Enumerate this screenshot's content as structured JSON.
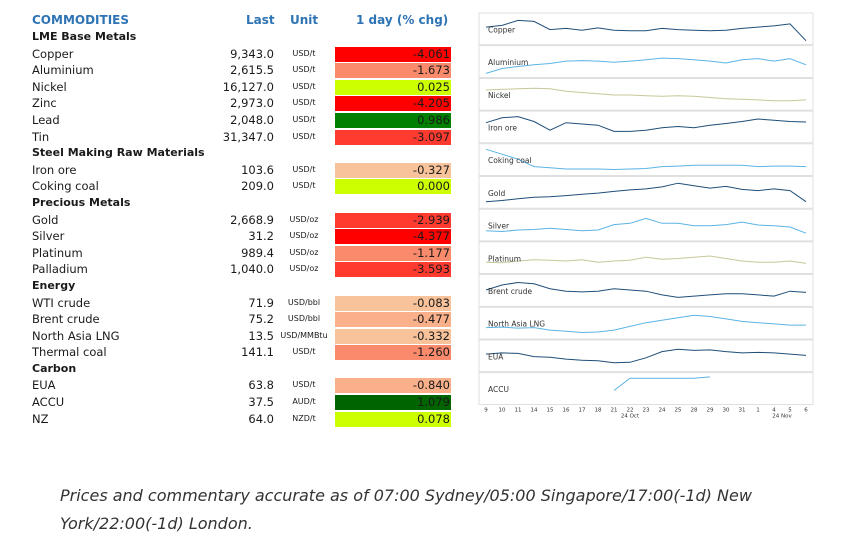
{
  "header": {
    "commodities": "COMMODITIES",
    "last": "Last",
    "unit": "Unit",
    "change": "1 day (% chg)"
  },
  "colors": {
    "header_blue": "#2e74b5",
    "strong_red": "#ff0000",
    "red": "#ff3b30",
    "salmon": "#f98a6c",
    "light_salmon": "#f9b08b",
    "peach": "#f8c39a",
    "lime": "#ccff00",
    "green": "#008000",
    "dark_green": "#006400",
    "spark_dark": "#1f4e79",
    "spark_light": "#5bb4e5",
    "spark_olive": "#c8c89a"
  },
  "rows": [
    {
      "type": "section",
      "name": "LME Base Metals"
    },
    {
      "type": "item",
      "name": "Copper",
      "last": "9,343.0",
      "unit": "USD/t",
      "change": "-4.061",
      "color": "#ff0000"
    },
    {
      "type": "item",
      "name": "Aluminium",
      "last": "2,615.5",
      "unit": "USD/t",
      "change": "-1.673",
      "color": "#f98a6c"
    },
    {
      "type": "item",
      "name": "Nickel",
      "last": "16,127.0",
      "unit": "USD/t",
      "change": "0.025",
      "color": "#ccff00"
    },
    {
      "type": "item",
      "name": "Zinc",
      "last": "2,973.0",
      "unit": "USD/t",
      "change": "-4.205",
      "color": "#ff0000"
    },
    {
      "type": "item",
      "name": "Lead",
      "last": "2,048.0",
      "unit": "USD/t",
      "change": "0.986",
      "color": "#008000"
    },
    {
      "type": "item",
      "name": "Tin",
      "last": "31,347.0",
      "unit": "USD/t",
      "change": "-3.097",
      "color": "#ff3b30"
    },
    {
      "type": "section",
      "name": "Steel Making Raw Materials"
    },
    {
      "type": "item",
      "name": "Iron ore",
      "last": "103.6",
      "unit": "USD/t",
      "change": "-0.327",
      "color": "#f8c39a"
    },
    {
      "type": "item",
      "name": "Coking coal",
      "last": "209.0",
      "unit": "USD/t",
      "change": "0.000",
      "color": "#ccff00"
    },
    {
      "type": "section",
      "name": "Precious Metals"
    },
    {
      "type": "item",
      "name": "Gold",
      "last": "2,668.9",
      "unit": "USD/oz",
      "change": "-2.939",
      "color": "#ff3b30"
    },
    {
      "type": "item",
      "name": "Silver",
      "last": "31.2",
      "unit": "USD/oz",
      "change": "-4.377",
      "color": "#ff0000"
    },
    {
      "type": "item",
      "name": "Platinum",
      "last": "989.4",
      "unit": "USD/oz",
      "change": "-1.177",
      "color": "#f98a6c"
    },
    {
      "type": "item",
      "name": "Palladium",
      "last": "1,040.0",
      "unit": "USD/oz",
      "change": "-3.593",
      "color": "#ff3b30"
    },
    {
      "type": "section",
      "name": "Energy"
    },
    {
      "type": "item",
      "name": "WTI crude",
      "last": "71.9",
      "unit": "USD/bbl",
      "change": "-0.083",
      "color": "#f8c39a"
    },
    {
      "type": "item",
      "name": "Brent crude",
      "last": "75.2",
      "unit": "USD/bbl",
      "change": "-0.477",
      "color": "#f9b08b"
    },
    {
      "type": "item",
      "name": "North Asia LNG",
      "last": "13.5",
      "unit": "USD/MMBtu",
      "change": "-0.332",
      "color": "#f8c39a"
    },
    {
      "type": "item",
      "name": "Thermal coal",
      "last": "141.1",
      "unit": "USD/t",
      "change": "-1.260",
      "color": "#f98a6c"
    },
    {
      "type": "section",
      "name": "Carbon"
    },
    {
      "type": "item",
      "name": "EUA",
      "last": "63.8",
      "unit": "USD/t",
      "change": "-0.840",
      "color": "#f9b08b"
    },
    {
      "type": "item",
      "name": "ACCU",
      "last": "37.5",
      "unit": "AUD/t",
      "change": "1.079",
      "color": "#006400"
    },
    {
      "type": "item",
      "name": "NZ",
      "last": "64.0",
      "unit": "NZD/t",
      "change": "0.078",
      "color": "#ccff00"
    }
  ],
  "chart_data": {
    "type": "line",
    "x": [
      "9",
      "10",
      "11",
      "14",
      "15",
      "16",
      "17",
      "18",
      "21",
      "22",
      "23",
      "24",
      "25",
      "28",
      "29",
      "30",
      "31",
      "1",
      "4",
      "5",
      "6"
    ],
    "x_group_labels": [
      "24 Oct",
      "24 Nov"
    ],
    "series": [
      {
        "name": "Copper",
        "color": "#1f4e79",
        "values": [
          0.55,
          0.62,
          0.82,
          0.78,
          0.45,
          0.5,
          0.42,
          0.52,
          0.42,
          0.4,
          0.4,
          0.5,
          0.45,
          0.42,
          0.4,
          0.42,
          0.5,
          0.55,
          0.6,
          0.68,
          0.0
        ]
      },
      {
        "name": "Aluminium",
        "color": "#5bb4e5",
        "values": [
          0.0,
          0.2,
          0.28,
          0.35,
          0.4,
          0.5,
          0.52,
          0.5,
          0.45,
          0.5,
          0.55,
          0.62,
          0.6,
          0.55,
          0.5,
          0.42,
          0.55,
          0.6,
          0.5,
          0.6,
          0.35
        ]
      },
      {
        "name": "Nickel",
        "color": "#c8c89a",
        "values": [
          0.65,
          0.68,
          0.7,
          0.72,
          0.7,
          0.6,
          0.55,
          0.5,
          0.45,
          0.45,
          0.42,
          0.4,
          0.42,
          0.4,
          0.35,
          0.3,
          0.28,
          0.25,
          0.22,
          0.22,
          0.25
        ]
      },
      {
        "name": "Iron ore",
        "color": "#1f4e79",
        "values": [
          0.65,
          0.85,
          0.9,
          0.7,
          0.35,
          0.65,
          0.6,
          0.55,
          0.3,
          0.3,
          0.35,
          0.45,
          0.5,
          0.45,
          0.55,
          0.62,
          0.7,
          0.8,
          0.75,
          0.7,
          0.68
        ]
      },
      {
        "name": "Coking coal",
        "color": "#5bb4e5",
        "values": [
          0.9,
          0.7,
          0.5,
          0.2,
          0.15,
          0.1,
          0.1,
          0.1,
          0.08,
          0.1,
          0.12,
          0.2,
          0.22,
          0.25,
          0.25,
          0.25,
          0.25,
          0.2,
          0.22,
          0.22,
          0.2
        ]
      },
      {
        "name": "Gold",
        "color": "#1f4e79",
        "values": [
          0.1,
          0.15,
          0.22,
          0.28,
          0.3,
          0.35,
          0.4,
          0.45,
          0.52,
          0.58,
          0.62,
          0.7,
          0.85,
          0.75,
          0.65,
          0.72,
          0.6,
          0.55,
          0.62,
          0.55,
          0.1
        ]
      },
      {
        "name": "Silver",
        "color": "#5bb4e5",
        "values": [
          0.25,
          0.22,
          0.28,
          0.3,
          0.35,
          0.3,
          0.25,
          0.28,
          0.5,
          0.55,
          0.75,
          0.55,
          0.55,
          0.45,
          0.45,
          0.5,
          0.6,
          0.48,
          0.45,
          0.4,
          0.15
        ]
      },
      {
        "name": "Platinum",
        "color": "#c8c89a",
        "values": [
          0.3,
          0.28,
          0.35,
          0.4,
          0.38,
          0.35,
          0.4,
          0.3,
          0.35,
          0.38,
          0.5,
          0.42,
          0.45,
          0.5,
          0.55,
          0.45,
          0.35,
          0.3,
          0.3,
          0.35,
          0.25
        ]
      },
      {
        "name": "Brent crude",
        "color": "#1f4e79",
        "values": [
          0.5,
          0.7,
          0.8,
          0.75,
          0.55,
          0.45,
          0.42,
          0.45,
          0.55,
          0.5,
          0.45,
          0.3,
          0.2,
          0.25,
          0.3,
          0.35,
          0.35,
          0.3,
          0.25,
          0.45,
          0.4
        ]
      },
      {
        "name": "North Asia LNG",
        "color": "#5bb4e5",
        "values": [
          0.3,
          0.32,
          0.28,
          0.3,
          0.2,
          0.15,
          0.1,
          0.12,
          0.2,
          0.35,
          0.5,
          0.6,
          0.7,
          0.8,
          0.75,
          0.65,
          0.55,
          0.5,
          0.45,
          0.4,
          0.4
        ]
      },
      {
        "name": "EUA",
        "color": "#1f4e79",
        "values": [
          0.55,
          0.6,
          0.58,
          0.45,
          0.42,
          0.35,
          0.3,
          0.28,
          0.2,
          0.22,
          0.4,
          0.65,
          0.75,
          0.7,
          0.72,
          0.65,
          0.6,
          0.62,
          0.6,
          0.55,
          0.5
        ]
      },
      {
        "name": "ACCU",
        "color": "#5bb4e5",
        "values": [
          null,
          null,
          null,
          null,
          null,
          null,
          null,
          null,
          0.4,
          0.9,
          0.9,
          0.9,
          0.9,
          0.9,
          0.95,
          null,
          null,
          null,
          null,
          null,
          null
        ]
      }
    ]
  },
  "footnote": "Prices and commentary accurate as of 07:00 Sydney/05:00 Singapore/17:00(-1d) New York/22:00(-1d) London."
}
